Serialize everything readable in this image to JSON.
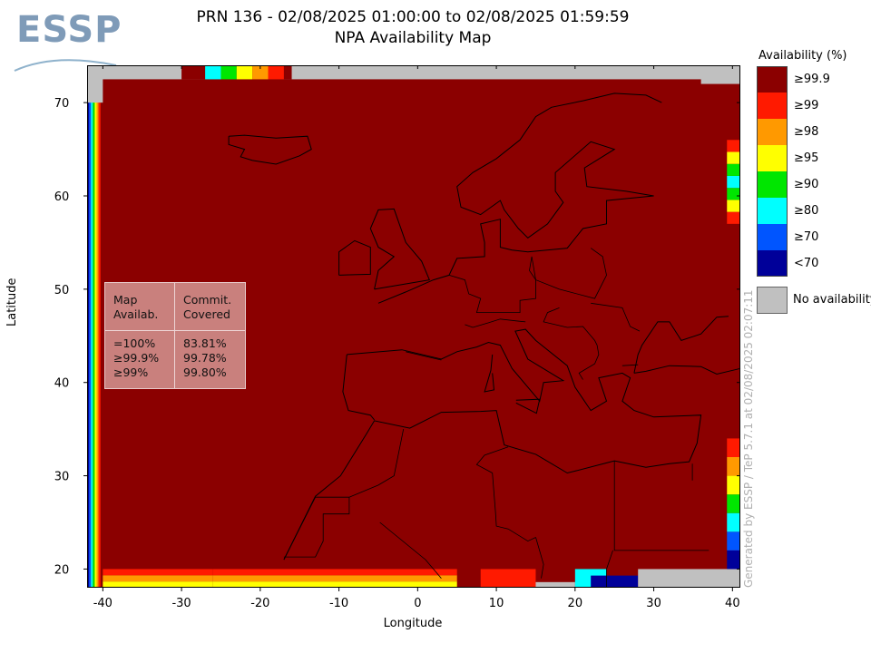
{
  "branding": {
    "logo_text": "ESSP"
  },
  "title": {
    "line1": "PRN 136 - 02/08/2025 01:00:00 to 02/08/2025 01:59:59",
    "line2": "NPA Availability Map"
  },
  "axes": {
    "xlabel": "Longitude",
    "ylabel": "Latitude"
  },
  "legend": {
    "title": "Availability (%)",
    "items": [
      {
        "label": "≥99.9",
        "color": "#8b0000"
      },
      {
        "label": "≥99",
        "color": "#ff1a00"
      },
      {
        "label": "≥98",
        "color": "#ff9900"
      },
      {
        "label": "≥95",
        "color": "#ffff00"
      },
      {
        "label": "≥90",
        "color": "#00e600"
      },
      {
        "label": "≥80",
        "color": "#00ffff"
      },
      {
        "label": "≥70",
        "color": "#0055ff"
      },
      {
        "label": "<70",
        "color": "#000099"
      }
    ],
    "no_availability": {
      "label": "No availability",
      "color": "#c0c0c0"
    }
  },
  "stats_box": {
    "header_col1": [
      "Map",
      "Availab."
    ],
    "header_col2": [
      "Commit.",
      "Covered"
    ],
    "rows": [
      {
        "level": "=100%",
        "covered": "83.81%"
      },
      {
        "level": "≥99.9%",
        "covered": "99.78%"
      },
      {
        "level": "≥99%",
        "covered": "99.80%"
      }
    ]
  },
  "watermark": "Generated by ESSP / TeP 5.7.1 at 02/08/2025 02:07:11",
  "chart_data": {
    "type": "heatmap",
    "title": "NPA Availability Map",
    "subtitle": "PRN 136 - 02/08/2025 01:00:00 to 02/08/2025 01:59:59",
    "xlabel": "Longitude",
    "ylabel": "Latitude",
    "xlim": [
      -42,
      41
    ],
    "ylim": [
      18,
      74
    ],
    "xticks": [
      -40,
      -30,
      -20,
      -10,
      0,
      10,
      20,
      30,
      40
    ],
    "yticks": [
      20,
      30,
      40,
      50,
      60,
      70
    ],
    "dominant_value": "≥99.9",
    "colors": {
      "dominant": "#8b0000",
      "no_availability": "#c0c0c0"
    }
  }
}
